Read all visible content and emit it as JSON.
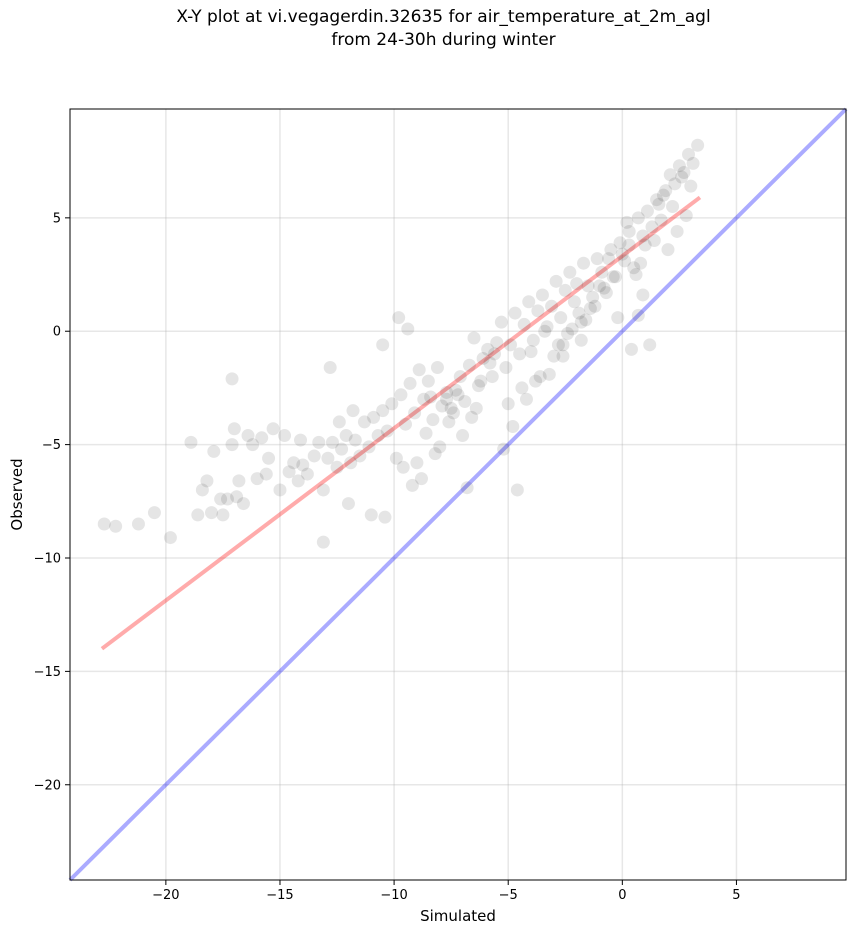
{
  "chart_data": {
    "type": "scatter",
    "title_line1": "X-Y plot at vi.vegagerdin.32635 for air_temperature_at_2m_agl",
    "title_line2": "from 24-30h during winter",
    "xlabel": "Simulated",
    "ylabel": "Observed",
    "xlim": [
      -24.2,
      9.8
    ],
    "ylim": [
      -24.2,
      9.8
    ],
    "xticks": [
      -20,
      -15,
      -10,
      -5,
      0,
      5
    ],
    "yticks": [
      -20,
      -15,
      -10,
      -5,
      0,
      5
    ],
    "xtick_labels": [
      "−20",
      "−15",
      "−10",
      "−5",
      "0",
      "5"
    ],
    "ytick_labels": [
      "−20",
      "−15",
      "−10",
      "−5",
      "0",
      "5"
    ],
    "grid": true,
    "point_color": "#000000",
    "point_alpha": 0.1,
    "identity_line": {
      "x": [
        -24.2,
        9.8
      ],
      "y": [
        -24.2,
        9.8
      ],
      "color": "#0000ff",
      "alpha": 0.33
    },
    "regression_line": {
      "x": [
        -22.8,
        3.4
      ],
      "y": [
        -14.0,
        5.9
      ],
      "color": "#ff0000",
      "alpha": 0.33
    },
    "points": {
      "x": [
        -22.7,
        -22.2,
        -21.2,
        -20.5,
        -19.8,
        -18.9,
        -18.6,
        -18.4,
        -18.2,
        -18.0,
        -17.9,
        -17.6,
        -17.5,
        -17.3,
        -17.1,
        -17.0,
        -16.9,
        -16.8,
        -16.6,
        -16.4,
        -16.2,
        -16.0,
        -15.8,
        -15.6,
        -15.3,
        -15.0,
        -14.8,
        -14.6,
        -14.4,
        -14.2,
        -14.0,
        -13.8,
        -13.5,
        -13.3,
        -13.1,
        -12.9,
        -12.7,
        -12.5,
        -12.3,
        -12.1,
        -11.9,
        -11.7,
        -11.5,
        -11.3,
        -11.1,
        -10.9,
        -10.7,
        -10.5,
        -10.3,
        -10.1,
        -9.9,
        -9.7,
        -9.5,
        -9.3,
        -9.1,
        -8.9,
        -8.7,
        -8.5,
        -8.3,
        -8.1,
        -7.9,
        -7.7,
        -7.5,
        -7.3,
        -7.1,
        -6.9,
        -6.7,
        -6.5,
        -6.3,
        -6.1,
        -5.9,
        -5.7,
        -5.5,
        -5.3,
        -5.1,
        -4.9,
        -4.7,
        -4.5,
        -4.3,
        -4.1,
        -3.9,
        -3.7,
        -3.5,
        -3.3,
        -3.1,
        -2.9,
        -2.7,
        -2.5,
        -2.3,
        -2.1,
        -1.9,
        -1.7,
        -1.5,
        -1.3,
        -1.1,
        -0.9,
        -0.7,
        -0.5,
        -0.3,
        -0.1,
        0.1,
        0.3,
        0.5,
        0.7,
        0.9,
        1.1,
        1.3,
        1.5,
        1.7,
        1.9,
        2.1,
        2.3,
        2.5,
        2.7,
        2.9,
        3.1,
        3.3,
        -17.1,
        -12.8,
        -13.1,
        -10.4,
        -6.8,
        -4.6,
        0.4,
        0.7,
        1.2,
        2.4,
        -9.0,
        -8.2,
        -7.6,
        -7.4,
        -7.7,
        -7.2,
        -3.0,
        -2.6,
        -2.2,
        -1.8,
        -1.4,
        -0.8,
        -0.4,
        0.0,
        0.3,
        0.8,
        1.4,
        1.6,
        -10.5,
        -9.8,
        -9.4,
        -12.4,
        -11.8,
        -6.2,
        -5.6,
        -4.0,
        -3.4,
        -2.0,
        -1.0,
        -0.6,
        0.2,
        1.0,
        -8.8,
        -8.0,
        -7.0,
        -6.6,
        -5.0,
        -4.4,
        -3.6,
        -2.8,
        -2.4,
        -1.6,
        -1.2,
        0.6,
        1.8,
        2.2,
        2.6,
        -15.5,
        -14.1,
        -12.0,
        -11.0,
        -9.6,
        -9.2,
        -8.6,
        -8.4,
        -6.4,
        -5.8,
        -5.2,
        -4.8,
        -4.2,
        -3.8,
        -3.2,
        -2.6,
        -1.8,
        -0.2,
        0.9,
        2.0,
        2.8,
        3.0
      ],
      "y": [
        -8.5,
        -8.6,
        -8.5,
        -8.0,
        -9.1,
        -4.9,
        -8.1,
        -7.0,
        -6.6,
        -8.0,
        -5.3,
        -7.4,
        -8.1,
        -7.4,
        -5.0,
        -4.3,
        -7.3,
        -6.6,
        -7.6,
        -4.6,
        -5.0,
        -6.5,
        -4.7,
        -6.3,
        -4.3,
        -7.0,
        -4.6,
        -6.2,
        -5.8,
        -6.6,
        -5.9,
        -6.3,
        -5.5,
        -4.9,
        -7.0,
        -5.6,
        -4.9,
        -6.0,
        -5.2,
        -4.6,
        -5.8,
        -4.8,
        -5.5,
        -4.0,
        -5.1,
        -3.8,
        -4.6,
        -3.5,
        -4.4,
        -3.2,
        -5.6,
        -2.8,
        -4.1,
        -2.3,
        -3.6,
        -1.7,
        -3.0,
        -2.2,
        -3.9,
        -1.6,
        -3.3,
        -2.7,
        -3.4,
        -2.6,
        -2.0,
        -3.1,
        -1.5,
        -0.3,
        -2.4,
        -1.2,
        -0.8,
        -2.0,
        -0.5,
        0.4,
        -1.6,
        -0.6,
        0.8,
        -1.0,
        0.3,
        1.3,
        -0.4,
        0.9,
        1.6,
        0.2,
        1.1,
        2.2,
        0.6,
        1.8,
        2.6,
        1.3,
        0.8,
        3.0,
        2.0,
        1.5,
        3.2,
        2.6,
        1.7,
        3.6,
        2.4,
        3.9,
        3.1,
        4.4,
        2.8,
        5.0,
        4.2,
        5.3,
        4.6,
        5.8,
        4.9,
        6.2,
        6.9,
        6.5,
        7.3,
        7.0,
        7.8,
        7.4,
        8.2,
        -2.1,
        -1.6,
        -9.3,
        -8.2,
        -6.9,
        -7.0,
        -0.8,
        0.7,
        -0.6,
        4.4,
        -5.8,
        -5.4,
        -4.0,
        -3.6,
        -3.0,
        -2.8,
        -1.1,
        -0.6,
        0.1,
        0.4,
        1.0,
        1.9,
        2.4,
        3.4,
        3.8,
        3.0,
        4.0,
        5.6,
        -0.6,
        0.6,
        0.1,
        -4.0,
        -3.5,
        -2.2,
        -1.0,
        -0.9,
        0.0,
        2.1,
        2.0,
        3.2,
        4.8,
        3.8,
        -6.5,
        -5.1,
        -4.6,
        -3.8,
        -3.2,
        -2.5,
        -2.0,
        -0.6,
        -0.1,
        0.5,
        1.1,
        2.5,
        6.0,
        5.5,
        6.8,
        -5.6,
        -4.8,
        -7.6,
        -8.1,
        -6.0,
        -6.8,
        -4.5,
        -2.9,
        -3.4,
        -1.4,
        -5.2,
        -4.2,
        -3.0,
        -2.2,
        -1.9,
        -1.1,
        -0.4,
        0.6,
        1.6,
        3.6,
        5.1,
        6.4
      ]
    }
  }
}
